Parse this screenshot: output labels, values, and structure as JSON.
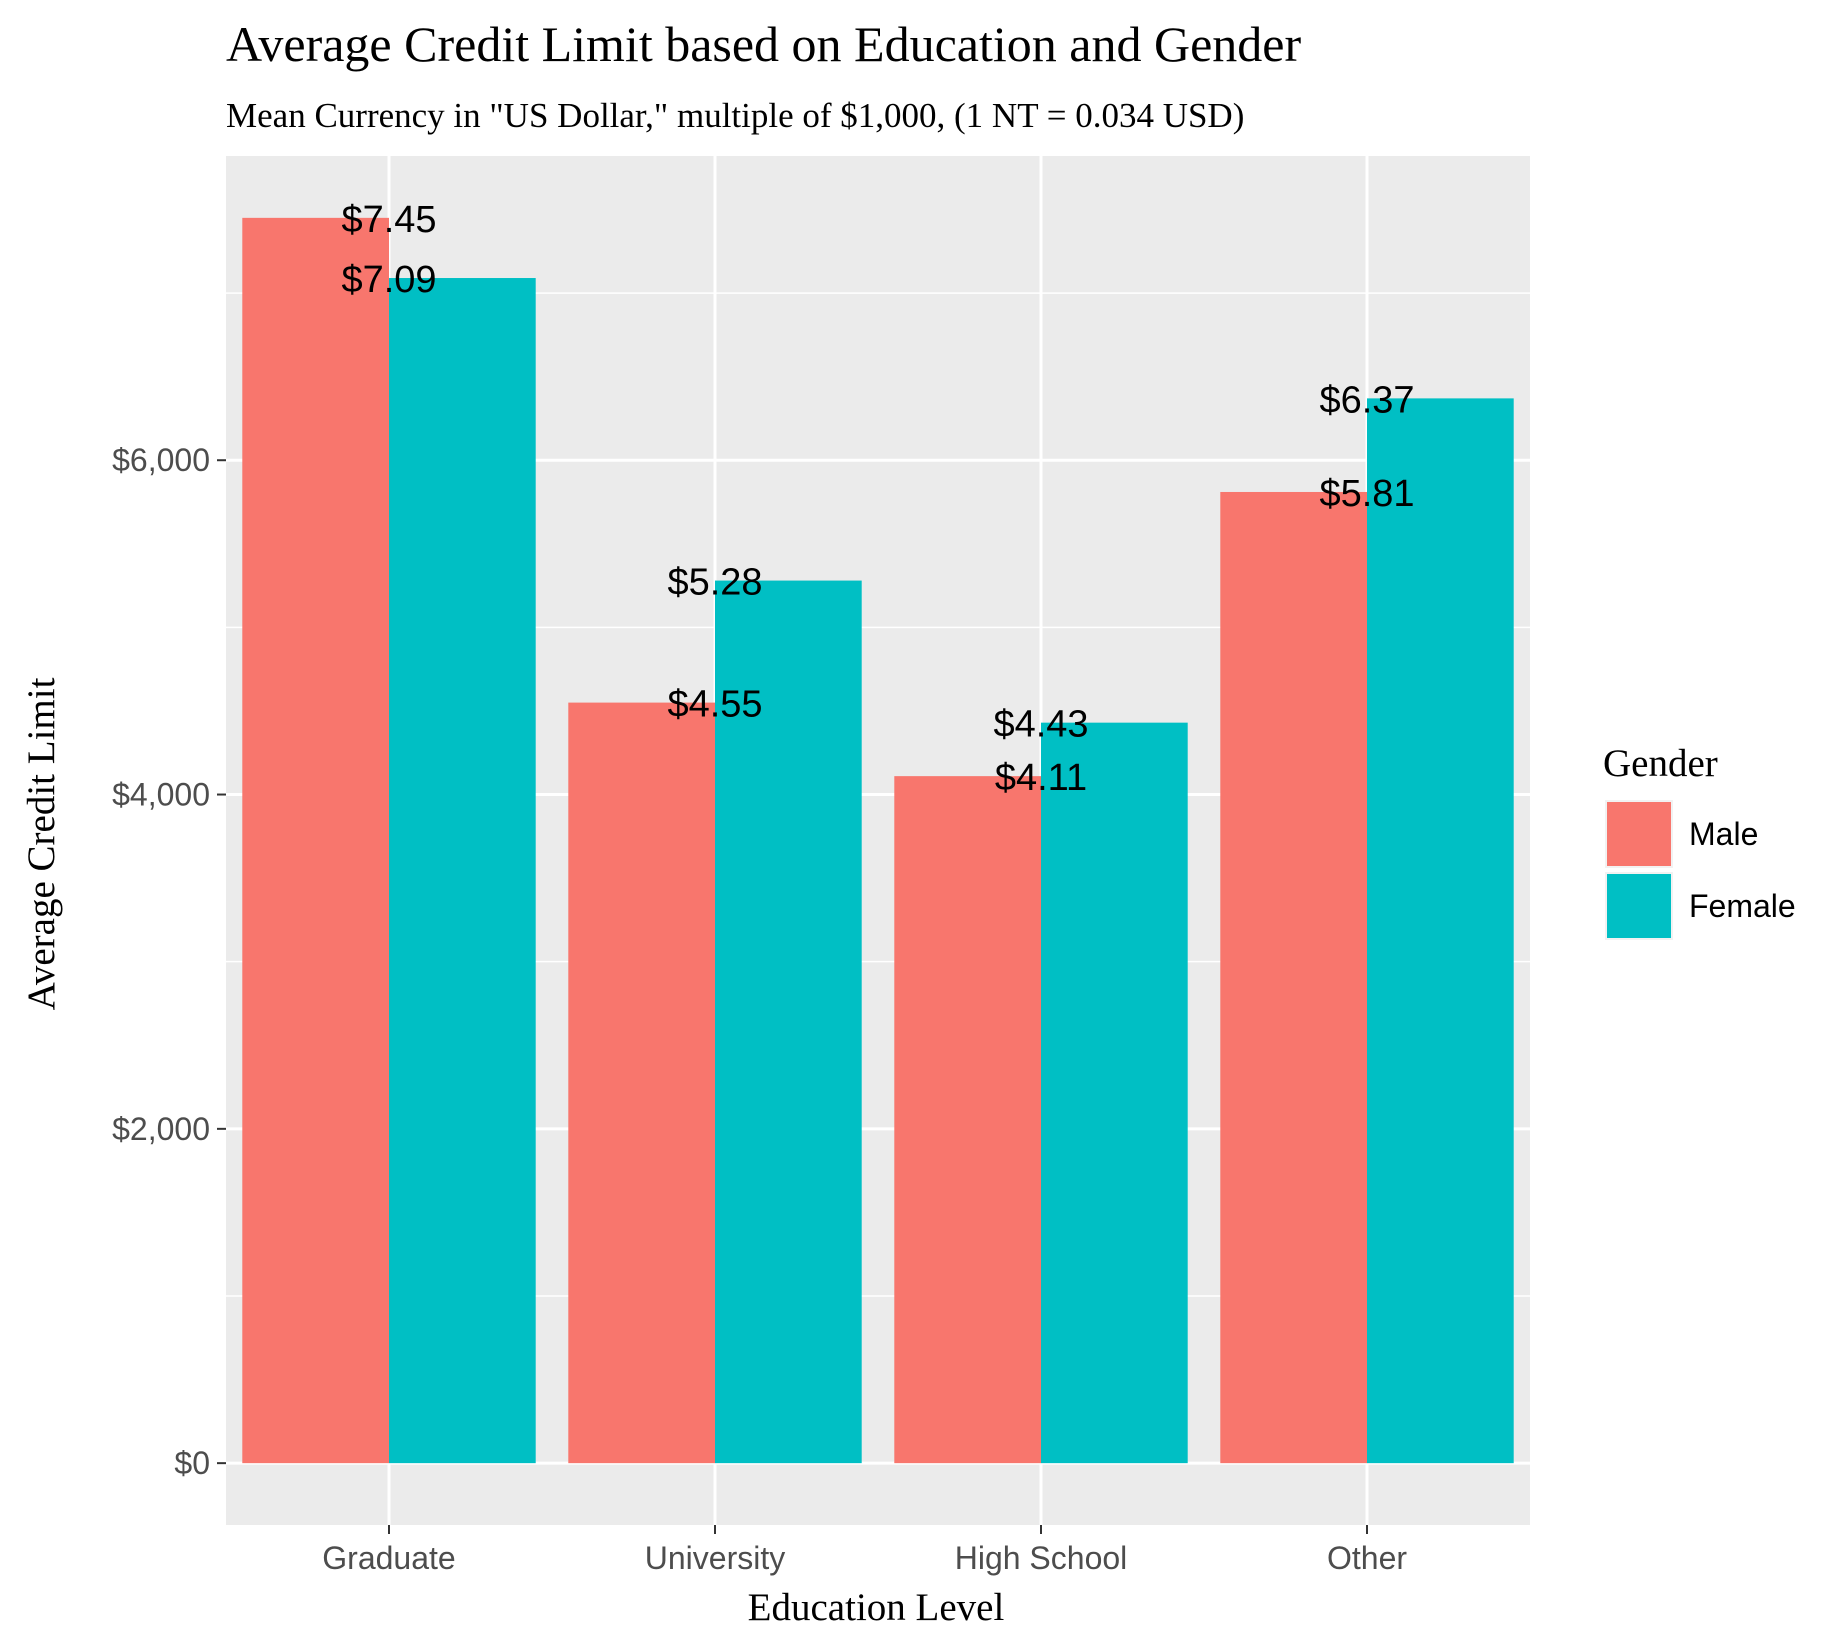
{
  "chart_data": {
    "type": "bar",
    "title": "Average Credit Limit based on Education and Gender",
    "subtitle": "Mean Currency in \"US Dollar,\" multiple of $1,000, (1 NT = 0.034 USD)",
    "xlabel": "Education Level",
    "ylabel": "Average Credit Limit",
    "categories": [
      "Graduate",
      "University",
      "High School",
      "Other"
    ],
    "series": [
      {
        "name": "Male",
        "color": "#F8766D",
        "values": [
          7450,
          4550,
          4110,
          5810
        ],
        "labels": [
          "$7.45",
          "$4.55",
          "$4.11",
          "$5.81"
        ]
      },
      {
        "name": "Female",
        "color": "#00BFC4",
        "values": [
          7090,
          5280,
          4430,
          6370
        ],
        "labels": [
          "$7.09",
          "$5.28",
          "$4.43",
          "$6.37"
        ]
      }
    ],
    "ylim": [
      -370,
      7820
    ],
    "y_ticks": [
      0,
      2000,
      4000,
      6000
    ],
    "y_tick_labels": [
      "$0",
      "$2,000",
      "$4,000",
      "$6,000"
    ],
    "legend": {
      "title": "Gender",
      "position": "right"
    },
    "grid": true,
    "panel_background": "#EBEBEB"
  }
}
